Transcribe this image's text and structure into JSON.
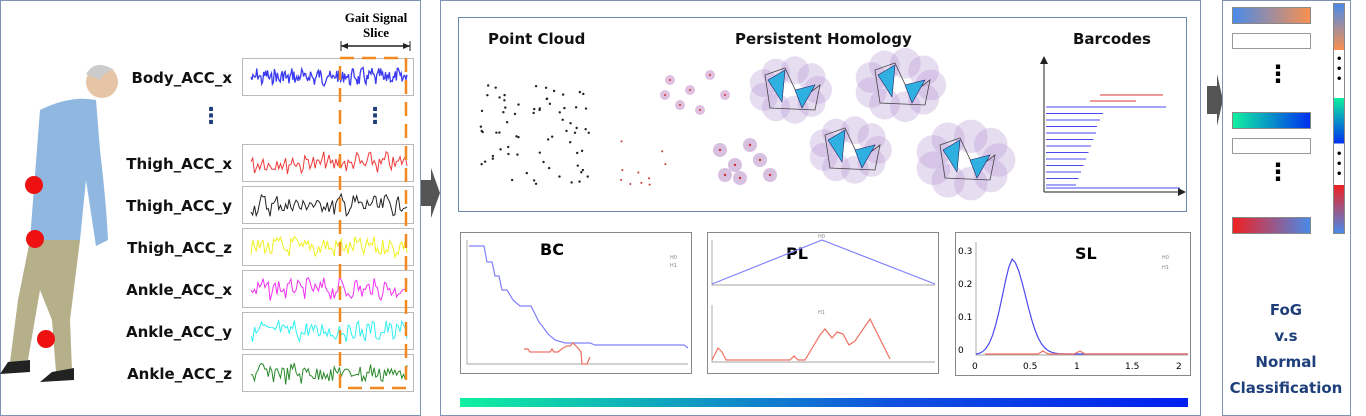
{
  "signals": {
    "slice_label_line1": "Gait Signal",
    "slice_label_line2": "Slice",
    "channels": [
      {
        "name": "Body_ACC_x",
        "color": "#3a3af0"
      },
      {
        "name": "Thigh_ACC_x",
        "color": "#f03a3a"
      },
      {
        "name": "Thigh_ACC_y",
        "color": "#222222"
      },
      {
        "name": "Thigh_ACC_z",
        "color": "#f0f020"
      },
      {
        "name": "Ankle_ACC_x",
        "color": "#f030f0"
      },
      {
        "name": "Ankle_ACC_y",
        "color": "#30f0f0"
      },
      {
        "name": "Ankle_ACC_z",
        "color": "#2a8a2a"
      }
    ],
    "ellipsis": "⋮",
    "slice_color": "#f08a20"
  },
  "tda": {
    "point_cloud_title": "Point Cloud",
    "persistent_homology_title": "Persistent Homology",
    "barcodes_title": "Barcodes"
  },
  "charts": {
    "bc": {
      "title": "BC",
      "legend": [
        "H0",
        "H1"
      ]
    },
    "pl": {
      "title": "PL",
      "legend_top": "H0",
      "legend_bottom": "H1"
    },
    "sl": {
      "title": "SL",
      "legend": [
        "H0",
        "H1"
      ],
      "y_ticks": [
        "0",
        "0.1",
        "0.2",
        "0.3"
      ],
      "x_ticks": [
        "0",
        "0.5",
        "1",
        "1.5",
        "2"
      ]
    },
    "h0_color": "#8080ff",
    "h1_color": "#f07060"
  },
  "classifier": {
    "line1": "FoG",
    "line2": "v.s",
    "line3": "Normal",
    "line4": "Classification"
  }
}
